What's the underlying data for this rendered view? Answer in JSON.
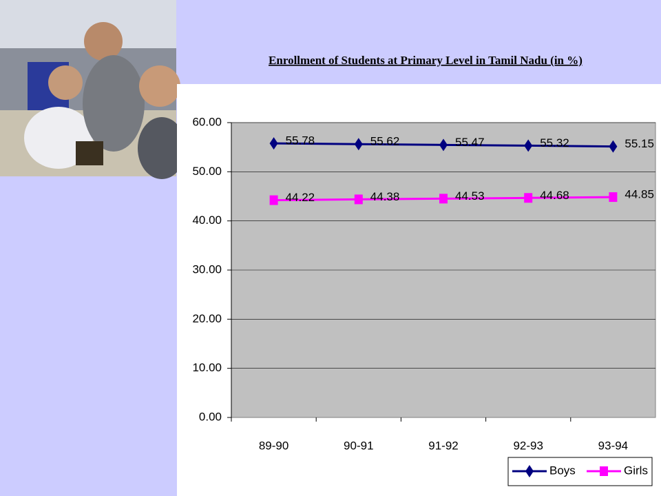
{
  "chart_data": {
    "type": "line",
    "title": "Enrollment of Students at Primary Level in Tamil Nadu (in %)",
    "categories": [
      "89-90",
      "90-91",
      "91-92",
      "92-93",
      "93-94"
    ],
    "series": [
      {
        "name": "Boys",
        "color": "#000080",
        "marker": "diamond",
        "values": [
          55.78,
          55.62,
          55.47,
          55.32,
          55.15
        ]
      },
      {
        "name": "Girls",
        "color": "#ff00ff",
        "marker": "square",
        "values": [
          44.22,
          44.38,
          44.53,
          44.68,
          44.85
        ]
      }
    ],
    "ylim": [
      0,
      60
    ],
    "yticks": [
      {
        "value": 0,
        "label": "0.00"
      },
      {
        "value": 10,
        "label": "10.00"
      },
      {
        "value": 20,
        "label": "20.00"
      },
      {
        "value": 30,
        "label": "30.00"
      },
      {
        "value": 40,
        "label": "40.00"
      },
      {
        "value": 50,
        "label": "50.00"
      },
      {
        "value": 60,
        "label": "60.00"
      }
    ],
    "grid": true,
    "legend": "bottom-right"
  }
}
